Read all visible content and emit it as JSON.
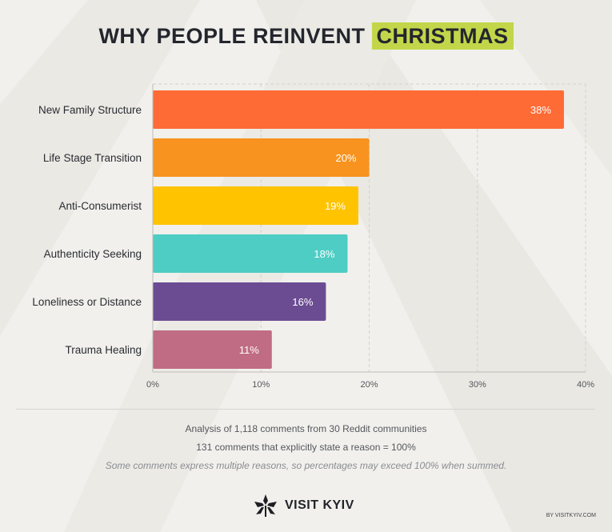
{
  "title": {
    "main": "WHY PEOPLE REINVENT",
    "highlight": "CHRISTMAS",
    "highlight_color": "#c3d64a"
  },
  "chart_data": {
    "type": "bar",
    "orientation": "horizontal",
    "categories": [
      "New Family Structure",
      "Life Stage Transition",
      "Anti-Consumerist",
      "Authenticity Seeking",
      "Loneliness or Distance",
      "Trauma Healing"
    ],
    "values": [
      38,
      20,
      19,
      18,
      16,
      11
    ],
    "data_labels": [
      "38%",
      "20%",
      "19%",
      "18%",
      "16%",
      "11%"
    ],
    "colors": [
      "#ff6b35",
      "#f7931e",
      "#ffc300",
      "#4ecdc4",
      "#6b4c93",
      "#c06c84"
    ],
    "xlim": [
      0,
      40
    ],
    "xticks": [
      0,
      10,
      20,
      30,
      40
    ],
    "xtick_labels": [
      "0%",
      "10%",
      "20%",
      "30%",
      "40%"
    ],
    "grid": "vertical dashed",
    "xlabel": "",
    "ylabel": ""
  },
  "notes": [
    "Analysis of 1,118 comments from 30 Reddit communities",
    "131 comments that explicitly state a reason = 100%",
    "Some comments express multiple reasons, so percentages may exceed 100% when summed."
  ],
  "footer": {
    "logo_text": "VISIT KYIV",
    "logo_icon": "chestnut-leaf-icon",
    "credit": "BY VISITKYIV.COM"
  }
}
